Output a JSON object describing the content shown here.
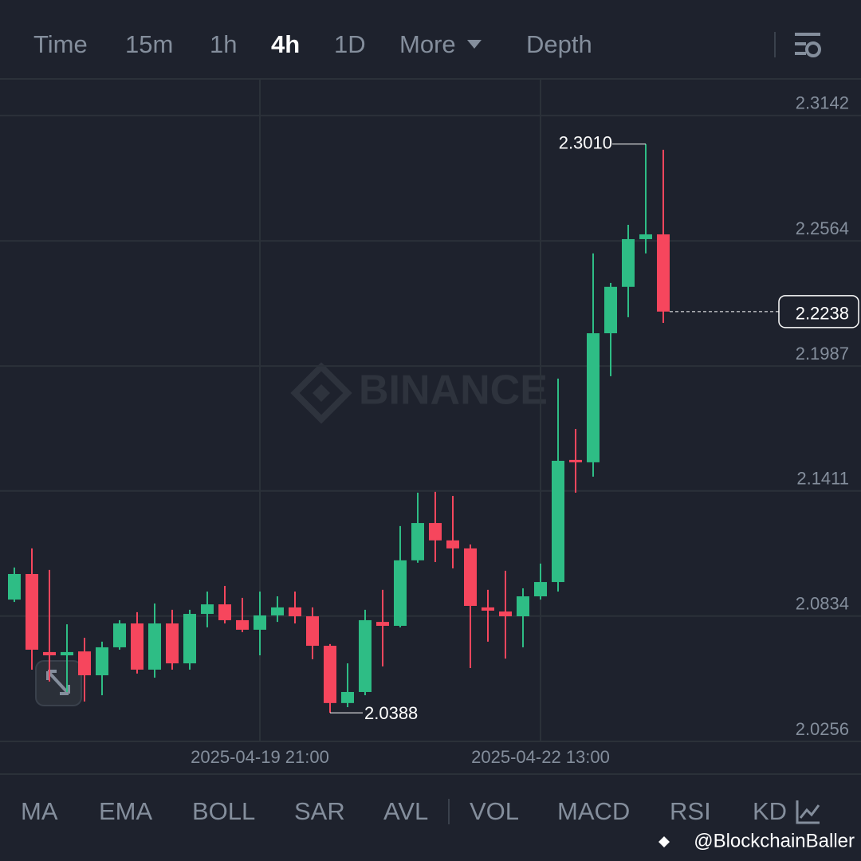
{
  "tabs": [
    "Time",
    "15m",
    "1h",
    "4h",
    "1D",
    "More",
    "Depth"
  ],
  "active_tab": "4h",
  "indicators": [
    "MA",
    "EMA",
    "BOLL",
    "SAR",
    "AVL",
    "VOL",
    "MACD",
    "RSI",
    "KD"
  ],
  "watermark": "BINANCE",
  "credit": "@BlockchainBaller",
  "chart_data": {
    "type": "candlestick",
    "categories": [
      null,
      null,
      null,
      null,
      null,
      null,
      null,
      null,
      null,
      null,
      null,
      null,
      null,
      null,
      "2025-04-19 21:00",
      null,
      null,
      null,
      null,
      null,
      null,
      null,
      null,
      null,
      null,
      null,
      null,
      null,
      null,
      null,
      "2025-04-22 13:00",
      null,
      null,
      null,
      null,
      null,
      null,
      null
    ],
    "up_color": "#2ebd85",
    "down_color": "#f6465d",
    "grid": true,
    "ylim": [
      2.0109,
      2.3307
    ],
    "yticks": [
      2.3142,
      2.2564,
      2.1987,
      2.1411,
      2.0834,
      2.0256
    ],
    "open": [
      2.091,
      2.1028,
      2.0668,
      2.0653,
      2.0671,
      2.0561,
      2.069,
      2.08,
      2.0587,
      2.08,
      2.0616,
      2.0844,
      2.0888,
      2.0815,
      2.0771,
      2.0837,
      2.0874,
      2.0833,
      2.0697,
      2.0433,
      2.0484,
      2.0807,
      2.0789,
      2.1091,
      2.1263,
      2.1183,
      2.1146,
      2.0874,
      2.0855,
      2.0833,
      2.0925,
      2.0991,
      2.1554,
      2.1543,
      2.2138,
      2.2352,
      2.2572,
      2.2594
    ],
    "high": [
      2.1058,
      2.1146,
      2.1047,
      2.0796,
      2.0734,
      2.0716,
      2.0815,
      2.0852,
      2.0892,
      2.0863,
      2.0863,
      2.0947,
      2.0973,
      2.0918,
      2.0947,
      2.0925,
      2.0947,
      2.0874,
      2.0705,
      2.0616,
      2.0863,
      2.0955,
      2.1249,
      2.1403,
      2.1407,
      2.1388,
      2.1164,
      2.0955,
      2.1043,
      2.0962,
      2.1076,
      2.1929,
      2.1697,
      2.2506,
      2.237,
      2.2638,
      2.301,
      2.2984
    ],
    "low": [
      2.0899,
      2.0587,
      2.0532,
      2.0484,
      2.044,
      2.0469,
      2.0679,
      2.0569,
      2.055,
      2.0587,
      2.0587,
      2.0782,
      2.08,
      2.076,
      2.0653,
      2.0807,
      2.08,
      2.0635,
      2.0388,
      2.0414,
      2.0469,
      2.0602,
      2.0782,
      2.108,
      2.1083,
      2.1054,
      2.0594,
      2.0716,
      2.0638,
      2.069,
      2.091,
      2.0947,
      2.1403,
      2.1477,
      2.194,
      2.2212,
      2.2506,
      2.2186
    ],
    "close": [
      2.1028,
      2.0679,
      2.0653,
      2.0668,
      2.0561,
      2.069,
      2.08,
      2.0587,
      2.08,
      2.0616,
      2.0844,
      2.0888,
      2.0815,
      2.0771,
      2.0837,
      2.0874,
      2.0833,
      2.0697,
      2.0433,
      2.0484,
      2.0815,
      2.0789,
      2.1091,
      2.1263,
      2.1183,
      2.1146,
      2.0881,
      2.0859,
      2.0833,
      2.0925,
      2.0991,
      2.155,
      2.1543,
      2.2138,
      2.2352,
      2.2572,
      2.2594,
      2.2238
    ],
    "high_labels": [
      null,
      null,
      null,
      null,
      null,
      null,
      null,
      null,
      null,
      null,
      null,
      null,
      null,
      null,
      null,
      null,
      null,
      null,
      null,
      null,
      null,
      null,
      null,
      null,
      null,
      null,
      null,
      null,
      null,
      null,
      null,
      null,
      null,
      null,
      null,
      null,
      "2.3010",
      null
    ],
    "low_labels": [
      null,
      null,
      null,
      null,
      null,
      null,
      null,
      null,
      null,
      null,
      null,
      null,
      null,
      null,
      null,
      null,
      null,
      null,
      "2.0388",
      null,
      null,
      null,
      null,
      null,
      null,
      null,
      null,
      null,
      null,
      null,
      null,
      null,
      null,
      null,
      null,
      null,
      null,
      null
    ],
    "close_labels": [
      null,
      null,
      null,
      null,
      null,
      null,
      null,
      null,
      null,
      null,
      null,
      null,
      null,
      null,
      null,
      null,
      null,
      null,
      null,
      null,
      null,
      null,
      null,
      null,
      null,
      null,
      null,
      null,
      null,
      null,
      null,
      null,
      null,
      null,
      null,
      null,
      null,
      "2.2238"
    ]
  }
}
